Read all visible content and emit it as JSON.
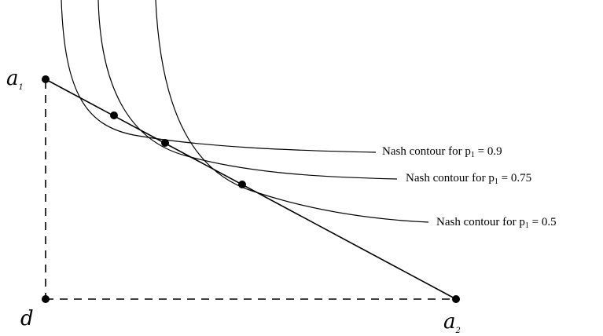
{
  "points": {
    "a1": {
      "symbol": "a",
      "subscript": "1"
    },
    "a2": {
      "symbol": "a",
      "subscript": "2"
    },
    "d": {
      "symbol": "d"
    }
  },
  "contours": [
    {
      "prefix": "Nash contour for p",
      "subscript": "1",
      "suffix": " = 0.9"
    },
    {
      "prefix": "Nash contour for p",
      "subscript": "1",
      "suffix": " = 0.75"
    },
    {
      "prefix": "Nash contour for p",
      "subscript": "1",
      "suffix": " = 0.5"
    }
  ],
  "colors": {
    "ink": "#000000",
    "background": "#ffffff"
  }
}
